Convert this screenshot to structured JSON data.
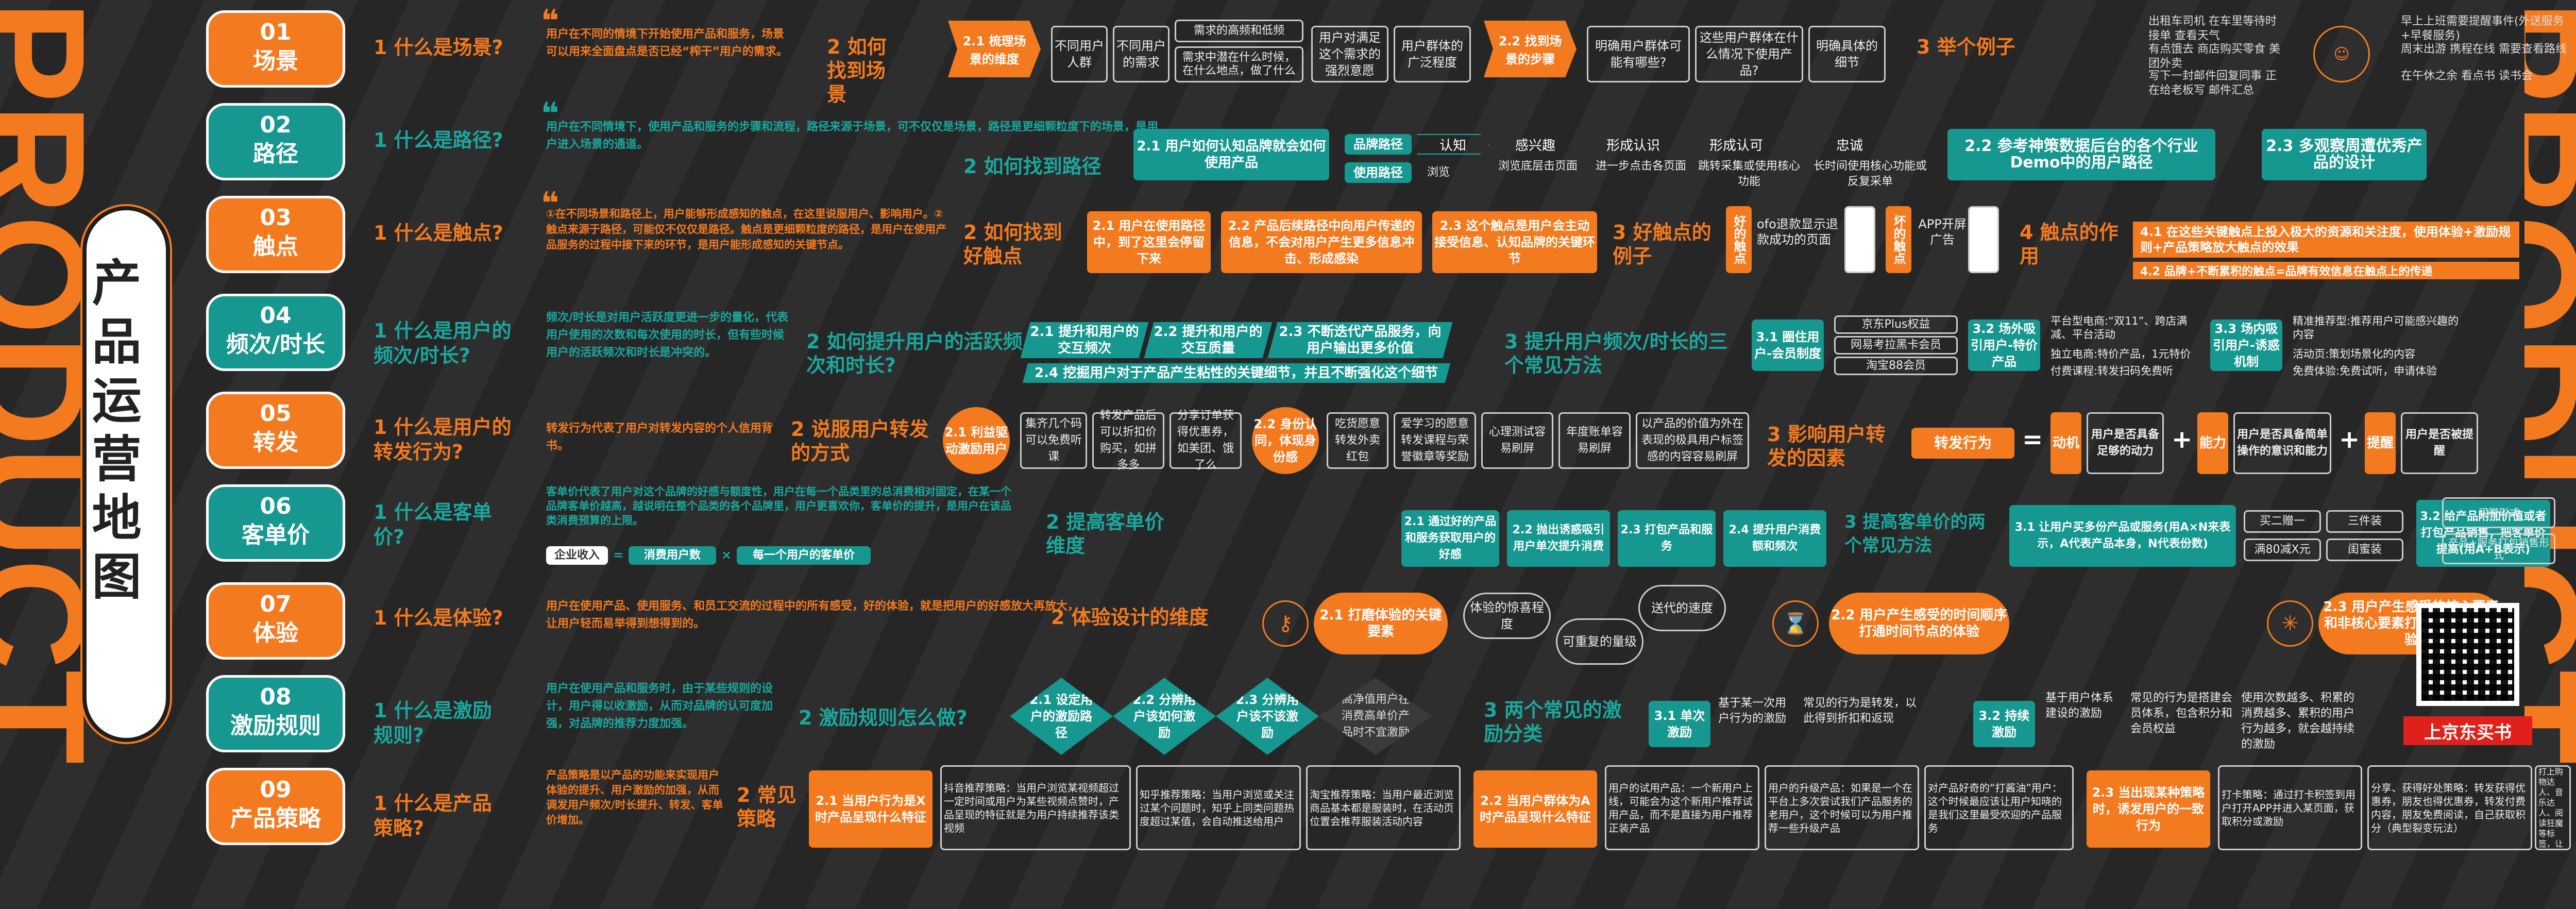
{
  "colors": {
    "orange": "#f47a20",
    "teal": "#16978f",
    "bg": "#2b2b2b",
    "buy": "#e0201a"
  },
  "brand": {
    "big_left": "PRODUCT",
    "big_right": "PRODUCT",
    "title": "产品运营地图"
  },
  "rows": [
    {
      "num": "01",
      "label": "场景",
      "question": "1 什么是场景?",
      "definition": "用户在不同的情境下开始使用产品和服务，场景可以用来全面盘点是否已经“榨干”用户的需求。",
      "h_find": "2 如何找到场景",
      "h_example": "3 举个例子",
      "s21": "2.1 梳理场景的维度",
      "s22": "2.2 找到场景的步骤",
      "dims": [
        "不同用户人群",
        "不同用户的需求",
        "需求的高频和低频",
        "需求中潜在什么时候，在什么地点，做了什么",
        "用户对满足这个需求的强烈意愿",
        "用户群体的广泛程度"
      ],
      "steps": [
        "明确用户群体可能有哪些?",
        "这些用户群体在什么情况下使用产品?",
        "明确具体的细节"
      ],
      "examples": [
        "出租车司机 在车里等待时接单 查看天气",
        "有点饿去 商店购买零食 美团外卖",
        "写下一封邮件回复同事 正在给老板写 邮件汇总",
        "早上上班需要提醒事件(外送服务+早餐服务)",
        "周末出游 携程在线 需要查看路线",
        "在午休之余 看点书 读书会"
      ]
    },
    {
      "num": "02",
      "label": "路径",
      "question": "1 什么是路径?",
      "definition": "用户在不同情境下，使用产品和服务的步骤和流程，路径来源于场景，可不仅仅是场景，路径是更细颗粒度下的场景，是用户进入场景的通道。",
      "h_find": "2 如何找到路径",
      "s21": "2.1 用户如何认知品牌就会如何使用产品",
      "brand_path_label": "品牌路径",
      "brand_path": [
        "认知",
        "感兴趣",
        "形成认识",
        "形成认可",
        "忠诚"
      ],
      "use_path_label": "使用路径",
      "use_path": [
        "浏览",
        "浏览底层击页面",
        "进一步点击各页面",
        "跳转采集或使用核心功能",
        "长时间使用核心功能或反复采单"
      ],
      "s22": "2.2 参考神策数据后台的各个行业Demo中的用户路径",
      "s23": "2.3 多观察周遭优秀产品的设计"
    },
    {
      "num": "03",
      "label": "触点",
      "question": "1 什么是触点?",
      "definition": "①在不同场景和路径上，用户能够形成感知的触点，在这里说服用户、影响用户。②触点来源于路径，可能仅不仅仅是路径。触点是更细颗粒度的路径，是用户在使用产品服务的过程中接下来的环节，是用户能形成感知的关键节点。",
      "h_find": "2 如何找到好触点",
      "s21": "2.1 用户在使用路径中，到了这里会停留下来",
      "s22": "2.2 产品后续路径中向用户传递的信息，不会对用户产生更多信息冲击、形成感染",
      "s23": "2.3 这个触点是用户会主动接受信息、认知品牌的关键环节",
      "h_example": "3 好触点的例子",
      "good_label": "好的触点",
      "good_text": "ofo退款显示退款成功的页面",
      "bad_label": "坏的触点",
      "bad_text": "APP开屏广告",
      "h_role": "4 触点的作用",
      "r41": "4.1 在这些关键触点上投入极大的资源和关注度，使用体验+激励规则+产品策略放大触点的效果",
      "r42": "4.2 品牌+不断累积的触点=品牌有效信息在触点上的传递"
    },
    {
      "num": "04",
      "label": "频次/时长",
      "question": "1 什么是用户的频次/时长?",
      "definition": "频次/时长是对用户活跃度更进一步的量化，代表用户使用的次数和每次使用的时长，但有些时候用户的活跃频次和时长是冲突的。",
      "h_find": "2 如何提升用户的活跃频次和时长?",
      "s21": "2.1 提升和用户的交互频次",
      "s22": "2.2 提升和用户的交互质量",
      "s23": "2.3 不断迭代产品服务，向用户输出更多价值",
      "s24": "2.4 挖掘用户对于产品产生粘性的关键细节，并且不断强化这个细节",
      "h_ways": "3 提升用户频次/时长的三个常见方法",
      "w31": "3.1 圈住用户-会员制度",
      "w31_items": [
        "京东Plus权益",
        "网易考拉黑卡会员",
        "淘宝88会员"
      ],
      "w32": "3.2 场外吸引用户-特价产品",
      "w32_items": [
        "平台型电商:“双11”、跨店满减、平台活动",
        "独立电商:特价产品，1元特价",
        "付费课程:转发扫码免费听"
      ],
      "w33": "3.3 场内吸引用户-诱惑机制",
      "w33_items": [
        "精准推荐型:推荐用户可能感兴趣的内容",
        "活动页:策划场景化的内容",
        "免费体验:免费试听，申请体验"
      ]
    },
    {
      "num": "05",
      "label": "转发",
      "question": "1 什么是用户的转发行为?",
      "definition": "转发行为代表了用户对转发内容的个人信用背书。",
      "h_way": "2 说服用户转发的方式",
      "s21": "2.1 利益驱动激励用户",
      "s21_items": [
        "集齐几个码可以免费听课",
        "转发产品后可以折扣价购买，如拼多多",
        "分享订单获得优惠券，如美团、饿了么"
      ],
      "s22": "2.2 身份认同，体现身份感",
      "s22_items": [
        "吃货愿意转发外卖红包",
        "爱学习的愿意转发课程与荣誉徽章等奖励",
        "心理测试容易刷屏",
        "年度账单容易刷屏",
        "以产品的价值为外在表现的极具用户标签感的内容容易刷屏"
      ],
      "h_factor": "3 影响用户转发的因素",
      "behavior": "转发行为",
      "eq": "=",
      "plus1": "+",
      "plus2": "+",
      "f1": "动机",
      "f1_txt": "用户是否具备足够的动力",
      "f2": "能力",
      "f2_txt": "用户是否具备简单操作的意识和能力",
      "f3": "提醒",
      "f3_txt": "用户是否被提醒"
    },
    {
      "num": "06",
      "label": "客单价",
      "question": "1 什么是客单价?",
      "definition": "客单价代表了用户对这个品牌的好感与额度性，用户在每一个品类里的总消费相对固定，在某一个品牌客单价越高，越说明在整个品类的各个品牌里，用户更喜欢你，客单价的提升，是用户在该品类消费预算的上限。",
      "formula_a": "企业收入",
      "formula_b": "消费用户数",
      "formula_c": "每一个用户的客单价",
      "op_eq": "=",
      "op_x": "×",
      "h_raise": "2 提高客单价维度",
      "s21": "2.1 通过好的产品和服务获取用户的好感",
      "s22": "2.2 抛出诱惑吸引用户单次提升消费",
      "s23": "2.3 打包产品和服务",
      "s24": "2.4 提升用户消费额和频次",
      "h_ways": "3 提高客单价的两个常见方法",
      "w31": "3.1 让用户买多份产品或服务(用A×N来表示，A代表产品本身，N代表份数)",
      "w31_items": [
        "买二赠一",
        "三件装",
        "满80减X元",
        "闺蜜装"
      ],
      "w32": "3.2 给产品附加价值或者打包产品销售，把客单价提高(用A+B表示)",
      "w32_items": [
        "买赠形式",
        "产品+服务打包销售形式"
      ]
    },
    {
      "num": "07",
      "label": "体验",
      "question": "1 什么是体验?",
      "definition": "用户在使用产品、使用服务、和员工交流的过程中的所有感受，好的体验，就是把用户的好感放大再放大，让用户轻而易举得到想得到的。",
      "h_dim": "2 体验设计的维度",
      "s21": "2.1 打磨体验的关键要素",
      "s21_items": [
        "体验的惊喜程度",
        "可重复的量级",
        "送代的速度"
      ],
      "s22": "2.2 用户产生感受的时间顺序打通时间节点的体验",
      "s23": "2.3 用户产生感受的核心要素和非核心要素打通分层次的体验"
    },
    {
      "num": "08",
      "label": "激励规则",
      "question": "1 什么是激励规则?",
      "definition": "用户在使用产品和服务时，由于某些规则的设计，用户得以收激励，从而对品牌的认可度加强，对品牌的推荐力度加强。",
      "h_how": "2 激励规则怎么做?",
      "s21": "2.1 设定用户的激励路径",
      "s22": "2.2 分辨用户该如何激励",
      "s23": "2.3 分辨用户该不该激励",
      "s_note": "高净值用户在消费高单价产品时不宜激励",
      "h_ways": "3 两个常见的激励分类",
      "w31": "3.1 单次激励",
      "w31_txt": "基于某一次用户行为的激励",
      "w31_ex": "常见的行为是转发，以此得到折扣和返现",
      "w32": "3.2 持续激励",
      "w32_txt": "基于用户体系建设的激励",
      "w32_ex": "常见的行为是搭建会员体系，包含积分和会员权益",
      "w32_ex2": "使用次数越多、积累的消费越多、累积的用户行为越多，就会越持续的激励"
    },
    {
      "num": "09",
      "label": "产品策略",
      "question": "1 什么是产品策略?",
      "definition": "产品策略是以产品的功能来实现用户体验的提升、用户激励的加强，从而调发用户频次/时长提升、转发、客单价增加。",
      "h_common": "2 常见策略",
      "s21": "2.1 当用户行为是X时产品呈现什么特征",
      "s21_items": [
        "抖音推荐策略：当用户浏览某视频超过一定时间或用户为某些视频点赞时，产品呈现的特征就是为用户持续推荐该类视频",
        "知乎推荐策略：当用户浏览或关注过某个问题时，知乎上同类问题热度超过某值，会自动推送给用户",
        "淘宝推荐策略：当用户最近浏览商品基本都是服装时，在活动页位置会推荐服装活动内容"
      ],
      "s22": "2.2 当用户群体为A时产品呈现什么特征",
      "s22_items": [
        "用户的试用产品：一个新用户上线，可能会为这个新用户推荐试用产品，而不是直接为用户推荐正装产品",
        "用户的升级产品：如果是一个在平台上多次尝试我们产品服务的老用户，这个时候可以为用户推荐一些升级产品",
        "对产品好奇的“打酱油”用户：这个时候最应该让用户知晓的是我们这里最受欢迎的产品服务"
      ],
      "s23": "2.3 当出现某种策略时，诱发用户的一致行为",
      "s23_items": [
        "打卡策略：通过打卡积签到用户打开APP并进入某页面，获取积分或激励",
        "分享、获得好处策略：转发获得优惠券，朋友也得优惠券，转发付费内容，朋友免费阅读，自己获取积分（典型裂变玩法）",
        "身份标签策略：通过年度账单的形式，为用户打上购物达人、音乐达人、阅读狂魔等标签，让用户在使用后获得身份认同等，并转发出去"
      ]
    }
  ],
  "qr": {
    "buy_label": "上京东买书"
  }
}
